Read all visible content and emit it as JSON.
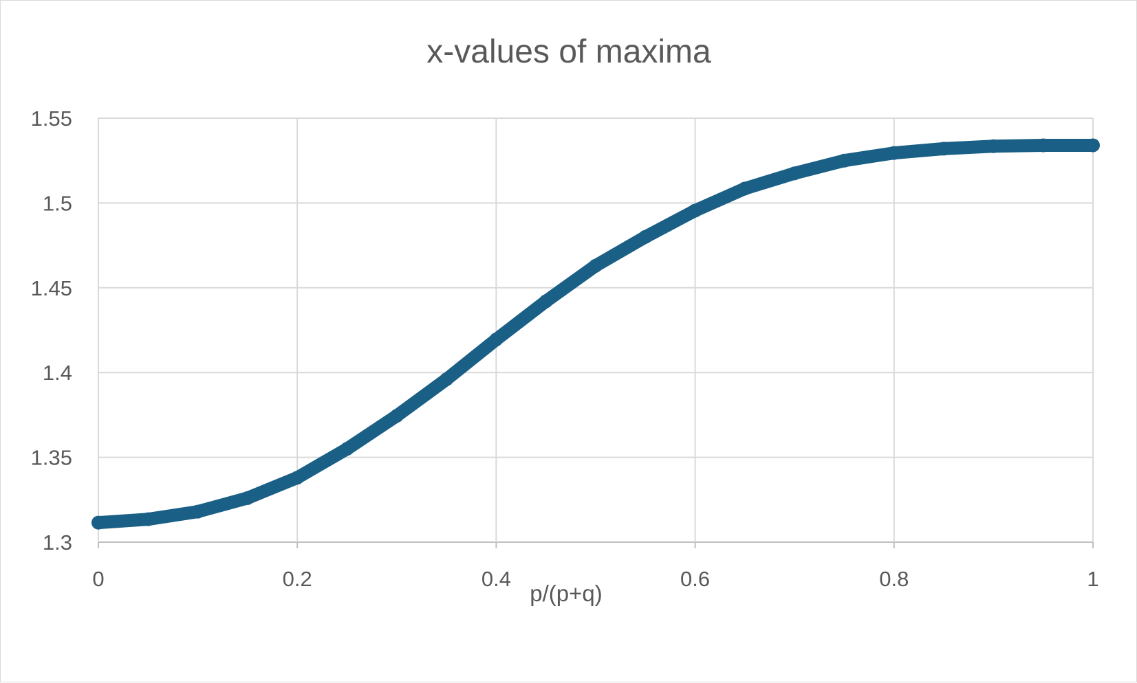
{
  "chart_data": {
    "type": "scatter",
    "title": "x-values of maxima",
    "xlabel": "p/(p+q)",
    "ylabel": "",
    "xlim": [
      0,
      1
    ],
    "ylim": [
      1.3,
      1.55
    ],
    "x_ticks": [
      "0",
      "0.2",
      "0.4",
      "0.6",
      "0.8",
      "1"
    ],
    "y_ticks": [
      "1.3",
      "1.35",
      "1.4",
      "1.45",
      "1.5",
      "1.55"
    ],
    "grid": true,
    "legend": "none",
    "series_color": "#1a5f85",
    "series": [
      {
        "x": [
          0,
          0.05,
          0.1,
          0.15,
          0.2,
          0.25,
          0.3,
          0.35,
          0.4,
          0.45,
          0.5,
          0.55,
          0.6,
          0.65,
          0.7,
          0.75,
          0.8,
          0.85,
          0.9,
          0.95,
          1
        ],
        "y": [
          1.3115,
          1.3135,
          1.318,
          1.326,
          1.338,
          1.355,
          1.3745,
          1.396,
          1.4195,
          1.442,
          1.463,
          1.48,
          1.4955,
          1.5085,
          1.5175,
          1.525,
          1.5295,
          1.532,
          1.5335,
          1.534,
          1.534
        ]
      }
    ]
  }
}
